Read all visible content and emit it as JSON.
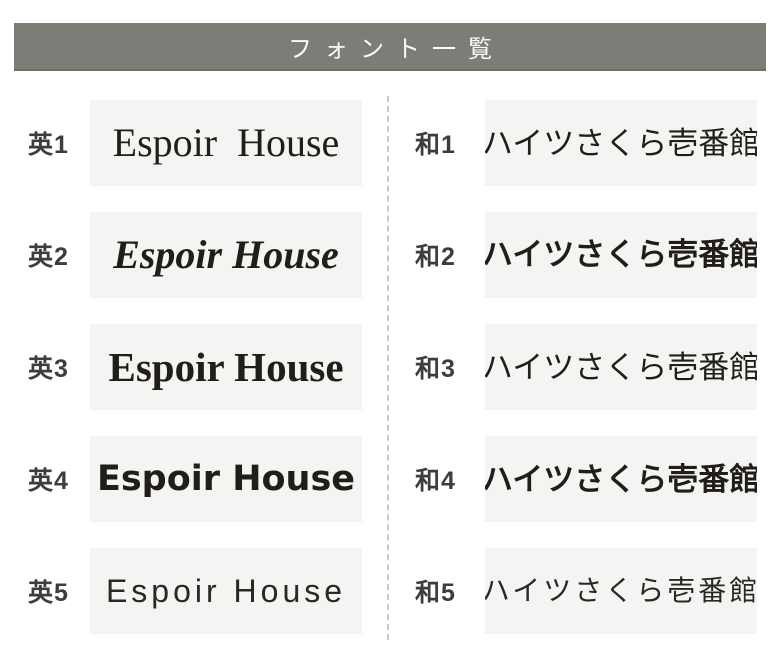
{
  "header": {
    "title": "フォント一覧"
  },
  "colors": {
    "title_bar_bg": "#7b7e76",
    "title_text": "#fafaf8",
    "sample_box_bg": "#f4f4f2",
    "label_text": "#3d3d3d",
    "sample_text": "#211d1a",
    "divider": "#c9c9c8"
  },
  "columns": {
    "english": {
      "items": [
        {
          "label": "英1",
          "sample": "Espoir House",
          "style": "serif-regular"
        },
        {
          "label": "英2",
          "sample": "Espoir House",
          "style": "serif-bold-italic"
        },
        {
          "label": "英3",
          "sample": "Espoir House",
          "style": "serif-bold"
        },
        {
          "label": "英4",
          "sample": "Espoir House",
          "style": "geometric-sans-bold"
        },
        {
          "label": "英5",
          "sample": "Espoir House",
          "style": "handwritten-light"
        }
      ]
    },
    "japanese": {
      "items": [
        {
          "label": "和1",
          "sample": "ハイツさくら壱番館",
          "style": "gothic"
        },
        {
          "label": "和2",
          "sample": "ハイツさくら壱番館",
          "style": "rounded-gothic-bold"
        },
        {
          "label": "和3",
          "sample": "ハイツさくら壱番館",
          "style": "mincho"
        },
        {
          "label": "和4",
          "sample": "ハイツさくら壱番館",
          "style": "gothic-bold"
        },
        {
          "label": "和5",
          "sample": "ハイツさくら壱番館",
          "style": "handwriting-light"
        }
      ]
    }
  }
}
